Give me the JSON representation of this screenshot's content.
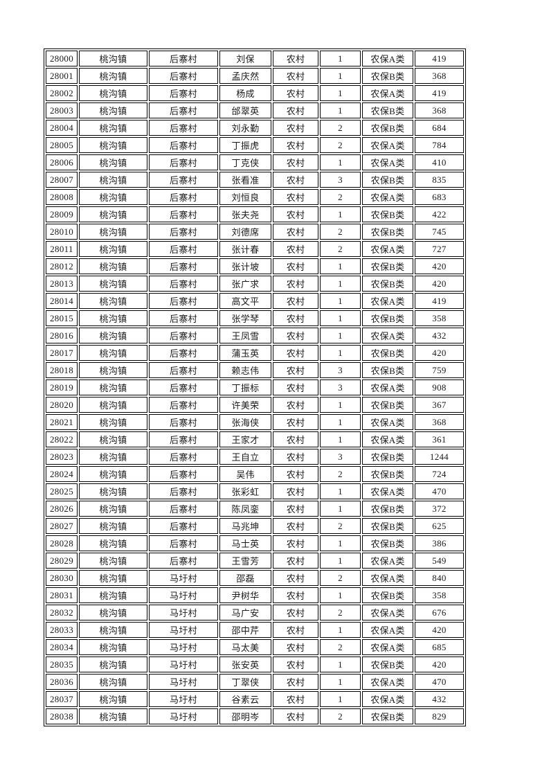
{
  "colors": {
    "page_background": "#ffffff",
    "table_border": "#000000",
    "text": "#1a1a1a"
  },
  "table": {
    "column_keys": [
      "id",
      "town",
      "village",
      "name",
      "household-type",
      "person-count",
      "insurance-type",
      "amount"
    ],
    "rows": [
      [
        "28000",
        "桃沟镇",
        "后寨村",
        "刘保",
        "农村",
        "1",
        "农保A类",
        "419"
      ],
      [
        "28001",
        "桃沟镇",
        "后寨村",
        "孟庆然",
        "农村",
        "1",
        "农保B类",
        "368"
      ],
      [
        "28002",
        "桃沟镇",
        "后寨村",
        "杨成",
        "农村",
        "1",
        "农保A类",
        "419"
      ],
      [
        "28003",
        "桃沟镇",
        "后寨村",
        "邰翠英",
        "农村",
        "1",
        "农保B类",
        "368"
      ],
      [
        "28004",
        "桃沟镇",
        "后寨村",
        "刘永勤",
        "农村",
        "2",
        "农保B类",
        "684"
      ],
      [
        "28005",
        "桃沟镇",
        "后寨村",
        "丁振虎",
        "农村",
        "2",
        "农保A类",
        "784"
      ],
      [
        "28006",
        "桃沟镇",
        "后寨村",
        "丁克侠",
        "农村",
        "1",
        "农保A类",
        "410"
      ],
      [
        "28007",
        "桃沟镇",
        "后寨村",
        "张看准",
        "农村",
        "3",
        "农保B类",
        "835"
      ],
      [
        "28008",
        "桃沟镇",
        "后寨村",
        "刘恒良",
        "农村",
        "2",
        "农保A类",
        "683"
      ],
      [
        "28009",
        "桃沟镇",
        "后寨村",
        "张夫尧",
        "农村",
        "1",
        "农保B类",
        "422"
      ],
      [
        "28010",
        "桃沟镇",
        "后寨村",
        "刘德席",
        "农村",
        "2",
        "农保B类",
        "745"
      ],
      [
        "28011",
        "桃沟镇",
        "后寨村",
        "张计春",
        "农村",
        "2",
        "农保A类",
        "727"
      ],
      [
        "28012",
        "桃沟镇",
        "后寨村",
        "张计坡",
        "农村",
        "1",
        "农保B类",
        "420"
      ],
      [
        "28013",
        "桃沟镇",
        "后寨村",
        "张广求",
        "农村",
        "1",
        "农保B类",
        "420"
      ],
      [
        "28014",
        "桃沟镇",
        "后寨村",
        "高文平",
        "农村",
        "1",
        "农保A类",
        "419"
      ],
      [
        "28015",
        "桃沟镇",
        "后寨村",
        "张学琴",
        "农村",
        "1",
        "农保B类",
        "358"
      ],
      [
        "28016",
        "桃沟镇",
        "后寨村",
        "王凤雪",
        "农村",
        "1",
        "农保A类",
        "432"
      ],
      [
        "28017",
        "桃沟镇",
        "后寨村",
        "蒲玉英",
        "农村",
        "1",
        "农保B类",
        "420"
      ],
      [
        "28018",
        "桃沟镇",
        "后寨村",
        "赖志伟",
        "农村",
        "3",
        "农保B类",
        "759"
      ],
      [
        "28019",
        "桃沟镇",
        "后寨村",
        "丁振标",
        "农村",
        "3",
        "农保A类",
        "908"
      ],
      [
        "28020",
        "桃沟镇",
        "后寨村",
        "许美荣",
        "农村",
        "1",
        "农保B类",
        "367"
      ],
      [
        "28021",
        "桃沟镇",
        "后寨村",
        "张海侠",
        "农村",
        "1",
        "农保A类",
        "368"
      ],
      [
        "28022",
        "桃沟镇",
        "后寨村",
        "王家才",
        "农村",
        "1",
        "农保A类",
        "361"
      ],
      [
        "28023",
        "桃沟镇",
        "后寨村",
        "王自立",
        "农村",
        "3",
        "农保B类",
        "1244"
      ],
      [
        "28024",
        "桃沟镇",
        "后寨村",
        "吴伟",
        "农村",
        "2",
        "农保B类",
        "724"
      ],
      [
        "28025",
        "桃沟镇",
        "后寨村",
        "张彩虹",
        "农村",
        "1",
        "农保A类",
        "470"
      ],
      [
        "28026",
        "桃沟镇",
        "后寨村",
        "陈凤銮",
        "农村",
        "1",
        "农保B类",
        "372"
      ],
      [
        "28027",
        "桃沟镇",
        "后寨村",
        "马兆坤",
        "农村",
        "2",
        "农保B类",
        "625"
      ],
      [
        "28028",
        "桃沟镇",
        "后寨村",
        "马士英",
        "农村",
        "1",
        "农保B类",
        "386"
      ],
      [
        "28029",
        "桃沟镇",
        "后寨村",
        "王雪芳",
        "农村",
        "1",
        "农保A类",
        "549"
      ],
      [
        "28030",
        "桃沟镇",
        "马圩村",
        "邵磊",
        "农村",
        "2",
        "农保A类",
        "840"
      ],
      [
        "28031",
        "桃沟镇",
        "马圩村",
        "尹树华",
        "农村",
        "1",
        "农保B类",
        "358"
      ],
      [
        "28032",
        "桃沟镇",
        "马圩村",
        "马广安",
        "农村",
        "2",
        "农保A类",
        "676"
      ],
      [
        "28033",
        "桃沟镇",
        "马圩村",
        "邵中芹",
        "农村",
        "1",
        "农保A类",
        "420"
      ],
      [
        "28034",
        "桃沟镇",
        "马圩村",
        "马太美",
        "农村",
        "2",
        "农保A类",
        "685"
      ],
      [
        "28035",
        "桃沟镇",
        "马圩村",
        "张安英",
        "农村",
        "1",
        "农保B类",
        "420"
      ],
      [
        "28036",
        "桃沟镇",
        "马圩村",
        "丁翠侠",
        "农村",
        "1",
        "农保A类",
        "470"
      ],
      [
        "28037",
        "桃沟镇",
        "马圩村",
        "谷素云",
        "农村",
        "1",
        "农保A类",
        "432"
      ],
      [
        "28038",
        "桃沟镇",
        "马圩村",
        "邵明岑",
        "农村",
        "2",
        "农保B类",
        "829"
      ]
    ]
  }
}
